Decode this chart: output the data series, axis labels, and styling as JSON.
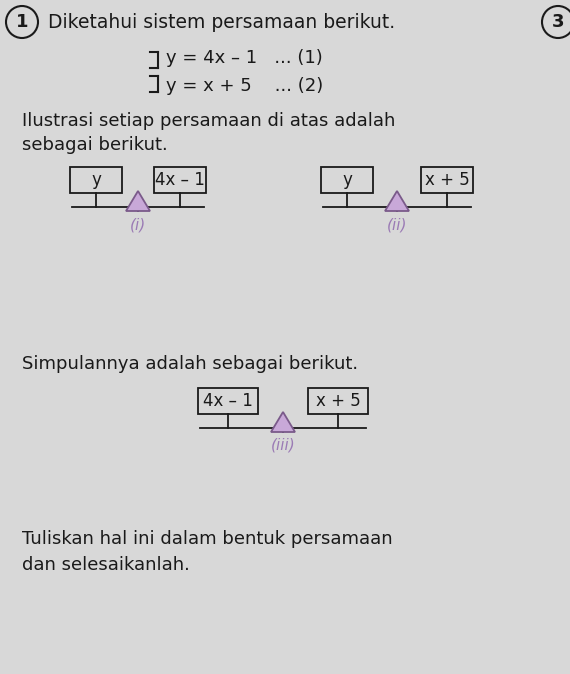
{
  "bg_color": "#d8d8d8",
  "text_color": "#1a1a1a",
  "purple_color": "#9b7bb5",
  "purple_fill": "#c8a8d8",
  "purple_edge": "#7a5a8a",
  "balance1_left": "y",
  "balance1_right": "4x – 1",
  "balance2_left": "y",
  "balance2_right": "x + 5",
  "balance3_left": "4x – 1",
  "balance3_right": "x + 5",
  "label_i": "(i)",
  "label_ii": "(ii)",
  "label_iii": "(iii)"
}
